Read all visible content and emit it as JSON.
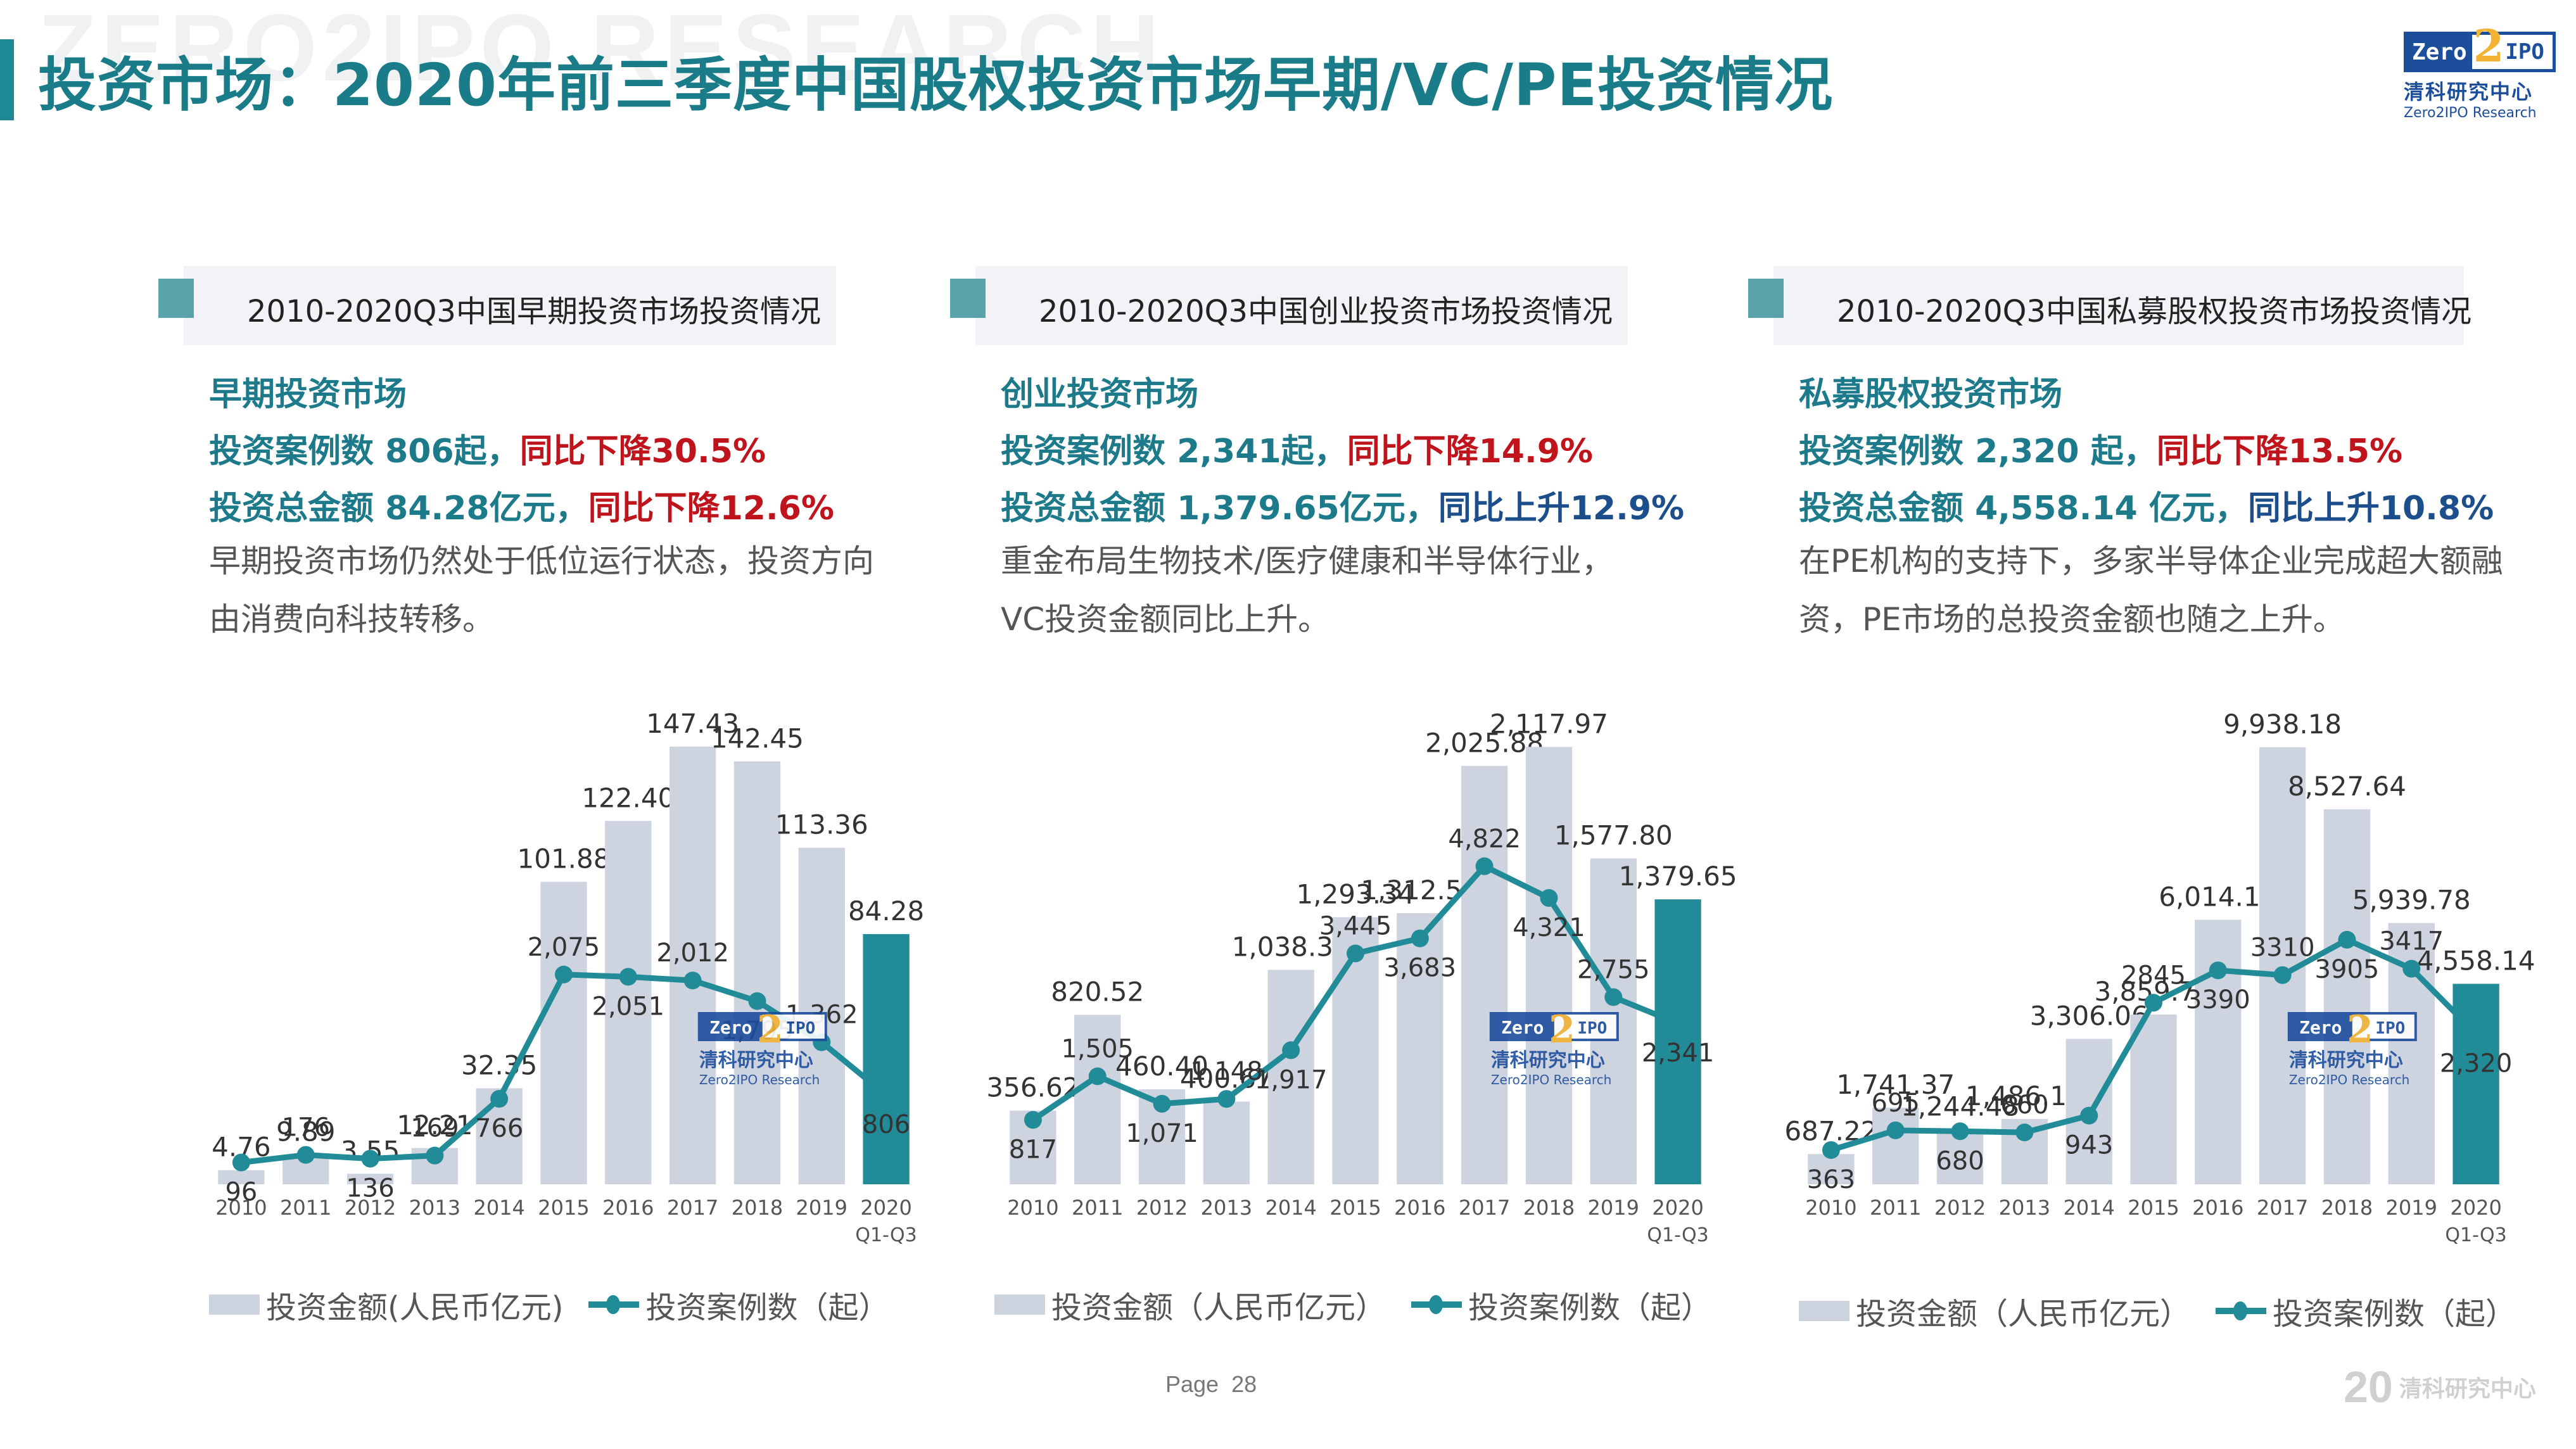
{
  "header": {
    "watermark": "ZERO2IPO RESEARCH",
    "title": "投资市场：2020年前三季度中国股权投资市场早期/VC/PE投资情况",
    "logo": {
      "mark_left": "Zero",
      "mark_two": "2",
      "mark_right": "IPO",
      "cn": "清科研究中心",
      "en": "Zero2IPO Research"
    }
  },
  "panels": [
    {
      "head": "2010-2020Q3中国早期投资市场投资情况",
      "subtitle": "早期投资市场",
      "cases_label": "投资案例数 806起，",
      "cases_change": "同比下降30.5%",
      "amount_label": "投资总金额 84.28亿元，",
      "amount_change": "同比下降12.6%",
      "description": "早期投资市场仍然处于低位运行状态，投资方向由消费向科技转移。",
      "legend_bar": "投资金额(人民币亿元)",
      "legend_line": "投资案例数（起）"
    },
    {
      "head": "2010-2020Q3中国创业投资市场投资情况",
      "subtitle": "创业投资市场",
      "cases_label": "投资案例数 2,341起，",
      "cases_change": "同比下降14.9%",
      "amount_label": "投资总金额 1,379.65亿元，",
      "amount_change": "同比上升12.9%",
      "description": "重金布局生物技术/医疗健康和半导体行业，VC投资金额同比上升。",
      "legend_bar": "投资金额（人民币亿元）",
      "legend_line": "投资案例数（起）"
    },
    {
      "head": "2010-2020Q3中国私募股权投资市场投资情况",
      "subtitle": "私募股权投资市场",
      "cases_label": "投资案例数 2,320 起，",
      "cases_change": "同比下降13.5%",
      "amount_label": "投资总金额 4,558.14 亿元，",
      "amount_change": "同比上升10.8%",
      "description": "在PE机构的支持下，多家半导体企业完成超大额融资，PE市场的总投资金额也随之上升。",
      "legend_bar": "投资金额（人民币亿元）",
      "legend_line": "投资案例数（起）"
    }
  ],
  "chart_data": [
    {
      "type": "bar+line",
      "title": "2010-2020Q3中国早期投资市场投资情况",
      "categories": [
        "2010",
        "2011",
        "2012",
        "2013",
        "2014",
        "2015",
        "2016",
        "2017",
        "2018",
        "2019",
        "2020 Q1-Q3"
      ],
      "series": [
        {
          "name": "投资金额(人民币亿元)",
          "type": "bar",
          "values": [
            4.76,
            9.89,
            3.55,
            12.21,
            32.35,
            101.88,
            122.4,
            147.43,
            142.45,
            113.36,
            84.28
          ],
          "labels": [
            "4.76",
            "9.89",
            "3.55",
            "12.21",
            "32.35",
            "101.88",
            "122.40",
            "147.43",
            "142.45",
            "113.36",
            "84.28"
          ]
        },
        {
          "name": "投资案例数（起）",
          "type": "line",
          "values": [
            96,
            176,
            136,
            169,
            766,
            2075,
            2051,
            2012,
            1795,
            1362,
            806
          ],
          "labels": [
            "96",
            "176",
            "136",
            "169",
            "766",
            "2,075",
            "2,051",
            "2,012",
            "1,795",
            "1,362",
            "806"
          ]
        }
      ],
      "bar_max": 160,
      "line_max": 5000,
      "highlight_last": true
    },
    {
      "type": "bar+line",
      "title": "2010-2020Q3中国创业投资市场投资情况",
      "categories": [
        "2010",
        "2011",
        "2012",
        "2013",
        "2014",
        "2015",
        "2016",
        "2017",
        "2018",
        "2019",
        "2020 Q1-Q3"
      ],
      "series": [
        {
          "name": "投资金额（人民币亿元）",
          "type": "bar",
          "values": [
            356.62,
            820.52,
            460.4,
            400.67,
            1038.3,
            1293.34,
            1312.57,
            2025.88,
            2117.97,
            1577.8,
            1379.65
          ],
          "labels": [
            "356.62",
            "820.52",
            "460.40",
            "400.67",
            "1,038.30",
            "1,293.34",
            "1,312.57",
            "2,025.88",
            "2,117.97",
            "1,577.80",
            "1,379.65"
          ]
        },
        {
          "name": "投资案例数（起）",
          "type": "line",
          "values": [
            817,
            1505,
            1071,
            1148,
            1917,
            3445,
            3683,
            4822,
            4321,
            2755,
            2341
          ],
          "labels": [
            "817",
            "1,505",
            "1,071",
            "1,148",
            "1,917",
            "3,445",
            "3,683",
            "4,822",
            "4,321",
            "2,755",
            "2,341"
          ]
        }
      ],
      "bar_max": 2300,
      "line_max": 7500,
      "highlight_last": true
    },
    {
      "type": "bar+line",
      "title": "2010-2020Q3中国私募股权投资市场投资情况",
      "categories": [
        "2010",
        "2011",
        "2012",
        "2013",
        "2014",
        "2015",
        "2016",
        "2017",
        "2018",
        "2019",
        "2020 Q1-Q3"
      ],
      "series": [
        {
          "name": "投资金额（人民币亿元）",
          "type": "bar",
          "values": [
            687.22,
            1741.37,
            1244.48,
            1486.12,
            3306.06,
            3859.74,
            6014.13,
            9938.18,
            8527.64,
            5939.78,
            4558.14
          ],
          "labels": [
            "687.22",
            "1,741.37",
            "1,244.48",
            "1,486.12",
            "3,306.06",
            "3,859.74",
            "6,014.13",
            "9,938.18",
            "8,527.64",
            "5,939.78",
            "4,558.14"
          ]
        },
        {
          "name": "投资案例数（起）",
          "type": "line",
          "values": [
            363,
            695,
            680,
            660,
            943,
            2845,
            3390,
            3310,
            3905,
            3417,
            2320
          ],
          "labels": [
            "363",
            "695",
            "680",
            "660",
            "943",
            "2845",
            "3390",
            "3310",
            "3905",
            "3417",
            "2,320"
          ]
        }
      ],
      "bar_max": 10800,
      "line_max": 8000,
      "highlight_last": true
    }
  ],
  "colors": {
    "bar": "#cdd3df",
    "bar_highlight": "#228b98",
    "line": "#228b98",
    "title": "#1a7c88",
    "down": "#c0141c",
    "up": "#1c4e8c"
  },
  "footer": {
    "page_label": "Page",
    "page_number": "28",
    "brand_mark": "20",
    "brand_cn": "清科研究中心"
  }
}
